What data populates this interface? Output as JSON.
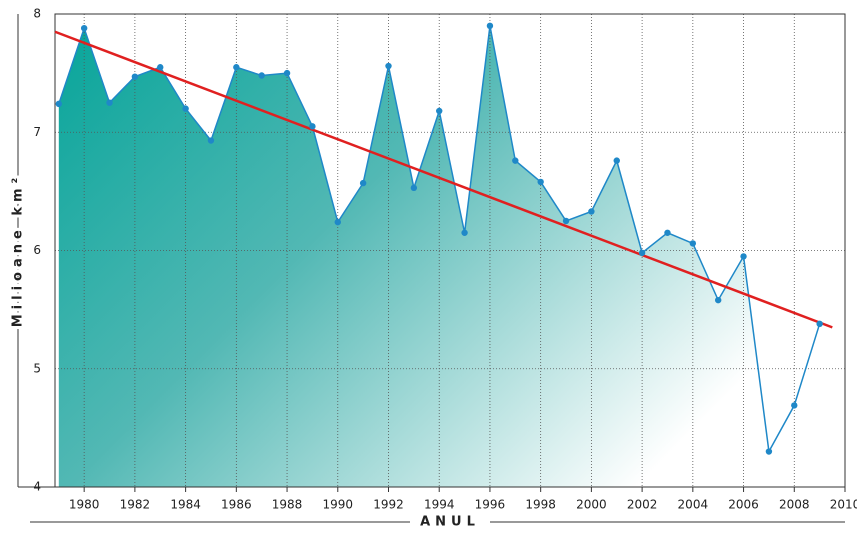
{
  "chart_data": {
    "type": "area",
    "x": [
      1979,
      1980,
      1981,
      1982,
      1983,
      1984,
      1985,
      1986,
      1987,
      1988,
      1989,
      1990,
      1991,
      1992,
      1993,
      1994,
      1995,
      1996,
      1997,
      1998,
      1999,
      2000,
      2001,
      2002,
      2003,
      2004,
      2005,
      2006,
      2007,
      2008,
      2009
    ],
    "series": [
      {
        "color": "#1f88c8",
        "values": [
          7.24,
          7.88,
          7.25,
          7.47,
          7.55,
          7.2,
          6.93,
          7.55,
          7.48,
          7.5,
          7.05,
          6.24,
          6.57,
          7.56,
          6.53,
          7.18,
          6.15,
          7.9,
          6.76,
          6.58,
          6.25,
          6.33,
          6.76,
          5.98,
          6.15,
          6.06,
          5.58,
          5.95,
          4.3,
          4.69,
          5.38
        ]
      }
    ],
    "trend": {
      "color": "#e02020",
      "x": [
        1978.85,
        2009.5
      ],
      "values": [
        7.85,
        5.35
      ]
    },
    "y_label": "Milioane km²",
    "x_label": "ANUL",
    "xlim": [
      1978.85,
      2010
    ],
    "ylim": [
      4,
      8
    ],
    "xticks": [
      1980,
      1982,
      1984,
      1986,
      1988,
      1990,
      1992,
      1994,
      1996,
      1998,
      2000,
      2002,
      2004,
      2006,
      2008,
      2010
    ],
    "yticks": [
      4,
      5,
      6,
      7,
      8
    ],
    "grid": true
  }
}
